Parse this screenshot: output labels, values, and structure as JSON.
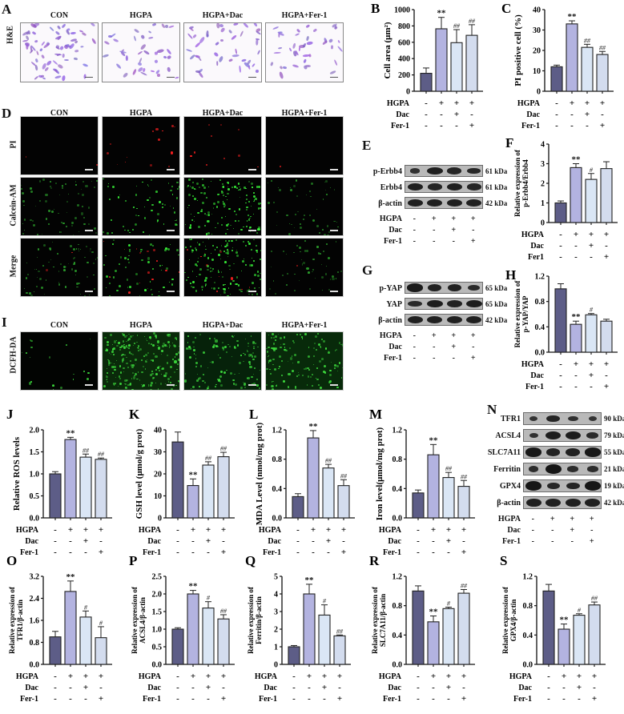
{
  "figure": {
    "conditions": {
      "row_labels": [
        "HGPA",
        "Dac",
        "Fer-1"
      ],
      "row_labels_F": [
        "HGPA",
        "Dac",
        "Fer1"
      ],
      "signs": [
        [
          "-",
          "+",
          "+",
          "+"
        ],
        [
          "-",
          "-",
          "+",
          "-"
        ],
        [
          "-",
          "-",
          "-",
          "+"
        ]
      ]
    },
    "group_names": [
      "CON",
      "HGPA",
      "HGPA+Dac",
      "HGPA+Fer-1"
    ],
    "bar_colors": [
      "#5d5d87",
      "#b3b3e0",
      "#dae6f5",
      "#d3dcee"
    ],
    "panels": {
      "A": {
        "label": "A",
        "row_label": "H&E"
      },
      "D": {
        "label": "D",
        "row_labels": [
          "PI",
          "Calcein-AM",
          "Merge"
        ]
      },
      "I": {
        "label": "I",
        "row_label": "DCFH-DA"
      },
      "E": {
        "label": "E",
        "bands": [
          {
            "name": "p-Erbb4",
            "kda": "61 kDa"
          },
          {
            "name": "Erbb4",
            "kda": "61 kDa"
          },
          {
            "name": "β-actin",
            "kda": "42 kDa"
          }
        ]
      },
      "G": {
        "label": "G",
        "bands": [
          {
            "name": "p-YAP",
            "kda": "65 kDa"
          },
          {
            "name": "YAP",
            "kda": "65 kDa"
          },
          {
            "name": "β-actin",
            "kda": "42 kDa"
          }
        ]
      },
      "N": {
        "label": "N",
        "bands": [
          {
            "name": "TFR1",
            "kda": "90 kDa"
          },
          {
            "name": "ACSL4",
            "kda": "79 kDa"
          },
          {
            "name": "SLC7A11",
            "kda": "55 kDa"
          },
          {
            "name": "Ferritin",
            "kda": "21 kDa"
          },
          {
            "name": "GPX4",
            "kda": "19 kDa"
          },
          {
            "name": "β-actin",
            "kda": "42 kDa"
          }
        ]
      }
    }
  },
  "chart_data": [
    {
      "panel": "B",
      "type": "bar",
      "ylabel": "Cell area (μm²)",
      "ylim": [
        0,
        1000
      ],
      "yticks": [
        "0",
        "200",
        "400",
        "600",
        "800",
        "1000"
      ],
      "categories": [
        "CON",
        "HGPA",
        "HGPA+Dac",
        "HGPA+Fer-1"
      ],
      "values": [
        220,
        765,
        595,
        685
      ],
      "errors": [
        65,
        140,
        160,
        130
      ],
      "annotations": [
        "",
        "**",
        "##",
        "##"
      ]
    },
    {
      "panel": "C",
      "type": "bar",
      "ylabel": "PI positive cell (%)",
      "ylim": [
        0,
        40
      ],
      "yticks": [
        "0",
        "10",
        "20",
        "30",
        "40"
      ],
      "categories": [
        "CON",
        "HGPA",
        "HGPA+Dac",
        "HGPA+Fer-1"
      ],
      "values": [
        12,
        33,
        21.5,
        18
      ],
      "errors": [
        0.8,
        1.5,
        1.5,
        1.5
      ],
      "annotations": [
        "",
        "**",
        "##",
        "##"
      ]
    },
    {
      "panel": "F",
      "type": "bar",
      "ylabel": "Relative expression of p-Erbb4/Erbb4",
      "ylim": [
        0,
        4
      ],
      "yticks": [
        "0",
        "1",
        "2",
        "3",
        "4"
      ],
      "categories": [
        "CON",
        "HGPA",
        "HGPA+Dac",
        "HGPA+Fer1"
      ],
      "values": [
        1.0,
        2.8,
        2.2,
        2.75
      ],
      "errors": [
        0.1,
        0.2,
        0.3,
        0.35
      ],
      "annotations": [
        "",
        "**",
        "#",
        ""
      ]
    },
    {
      "panel": "H",
      "type": "bar",
      "ylabel": "Relative expression of p-YAP/YAP",
      "ylim": [
        0,
        1.2
      ],
      "yticks": [
        "0.0",
        "0.4",
        "0.8",
        "1.2"
      ],
      "categories": [
        "CON",
        "HGPA",
        "HGPA+Dac",
        "HGPA+Fer-1"
      ],
      "values": [
        1.0,
        0.44,
        0.59,
        0.49
      ],
      "errors": [
        0.08,
        0.05,
        0.02,
        0.03
      ],
      "annotations": [
        "",
        "**",
        "#",
        ""
      ]
    },
    {
      "panel": "J",
      "type": "bar",
      "ylabel": "Relative ROS levels",
      "ylim": [
        0,
        2.0
      ],
      "yticks": [
        "0.0",
        "0.5",
        "1.0",
        "1.5",
        "2.0"
      ],
      "categories": [
        "CON",
        "HGPA",
        "HGPA+Dac",
        "HGPA+Fer-1"
      ],
      "values": [
        1.0,
        1.78,
        1.38,
        1.33
      ],
      "errors": [
        0.05,
        0.05,
        0.07,
        0.03
      ],
      "annotations": [
        "",
        "**",
        "##",
        "##"
      ]
    },
    {
      "panel": "K",
      "type": "bar",
      "ylabel": "GSH level (μmol/g prot)",
      "ylim": [
        0,
        40
      ],
      "yticks": [
        "0",
        "10",
        "20",
        "30",
        "40"
      ],
      "categories": [
        "CON",
        "HGPA",
        "HGPA+Dac",
        "HGPA+Fer-1"
      ],
      "values": [
        34.5,
        14.7,
        24,
        27.8
      ],
      "errors": [
        4.5,
        3,
        1.5,
        2
      ],
      "annotations": [
        "",
        "**",
        "##",
        "##"
      ]
    },
    {
      "panel": "L",
      "type": "bar",
      "ylabel": "MDA Level (nmol/mg prot)",
      "ylim": [
        0,
        1.2
      ],
      "yticks": [
        "0.0",
        "0.4",
        "0.8",
        "1.2"
      ],
      "categories": [
        "CON",
        "HGPA",
        "HGPA+Dac",
        "HGPA+Fer-1"
      ],
      "values": [
        0.29,
        1.09,
        0.68,
        0.44
      ],
      "errors": [
        0.04,
        0.1,
        0.05,
        0.08
      ],
      "annotations": [
        "",
        "**",
        "##",
        "##"
      ]
    },
    {
      "panel": "M",
      "type": "bar",
      "ylabel": "Iron level(μmol/mg prot)",
      "ylim": [
        0,
        1.2
      ],
      "yticks": [
        "0.0",
        "0.4",
        "0.8",
        "1.2"
      ],
      "categories": [
        "CON",
        "HGPA",
        "HGPA+Dac",
        "HGPA+Fer-1"
      ],
      "values": [
        0.34,
        0.86,
        0.55,
        0.43
      ],
      "errors": [
        0.04,
        0.14,
        0.07,
        0.08
      ],
      "annotations": [
        "",
        "**",
        "##",
        "##"
      ]
    },
    {
      "panel": "O",
      "type": "bar",
      "ylabel": "Relative expression of TFR1/β-actin",
      "ylim": [
        0,
        3.2
      ],
      "yticks": [
        "0.0",
        "0.8",
        "1.6",
        "2.4",
        "3.2"
      ],
      "categories": [
        "CON",
        "HGPA",
        "HGPA+Dac",
        "HGPA+Fer-1"
      ],
      "values": [
        1.0,
        2.65,
        1.72,
        0.97
      ],
      "errors": [
        0.2,
        0.38,
        0.22,
        0.4
      ],
      "annotations": [
        "",
        "**",
        "#",
        "#"
      ]
    },
    {
      "panel": "P",
      "type": "bar",
      "ylabel": "Relative expression of ACSL4/β-actin",
      "ylim": [
        0,
        2.5
      ],
      "yticks": [
        "0.0",
        "0.5",
        "1.0",
        "1.5",
        "2.0",
        "2.5"
      ],
      "categories": [
        "CON",
        "HGPA",
        "HGPA+Dac",
        "HGPA+Fer-1"
      ],
      "values": [
        1.0,
        2.0,
        1.6,
        1.29
      ],
      "errors": [
        0.04,
        0.1,
        0.18,
        0.12
      ],
      "annotations": [
        "",
        "**",
        "#",
        "##"
      ]
    },
    {
      "panel": "Q",
      "type": "bar",
      "ylabel": "Relative expression of Ferritin/β-actin",
      "ylim": [
        0,
        5
      ],
      "yticks": [
        "0",
        "1",
        "2",
        "3",
        "4",
        "5"
      ],
      "categories": [
        "CON",
        "HGPA",
        "HGPA+Dac",
        "HGPA+Fer-1"
      ],
      "values": [
        1.0,
        4.0,
        2.8,
        1.62
      ],
      "errors": [
        0.07,
        0.55,
        0.58,
        0.05
      ],
      "annotations": [
        "",
        "**",
        "#",
        "##"
      ]
    },
    {
      "panel": "R",
      "type": "bar",
      "ylabel": "Relative expression of SLC7A11/β-actin",
      "ylim": [
        0,
        1.2
      ],
      "yticks": [
        "0.0",
        "0.4",
        "0.8",
        "1.2"
      ],
      "categories": [
        "CON",
        "HGPA",
        "HGPA+Dac",
        "HGPA+Fer-1"
      ],
      "values": [
        1.0,
        0.58,
        0.76,
        0.97
      ],
      "errors": [
        0.07,
        0.08,
        0.02,
        0.05
      ],
      "annotations": [
        "",
        "**",
        "#",
        "##"
      ]
    },
    {
      "panel": "S",
      "type": "bar",
      "ylabel": "Relative expression of GPX4/β-actin",
      "ylim": [
        0,
        1.2
      ],
      "yticks": [
        "0.0",
        "0.4",
        "0.8",
        "1.2"
      ],
      "categories": [
        "CON",
        "HGPA",
        "HGPA+Dac",
        "HGPA+Fer-1"
      ],
      "values": [
        1.0,
        0.48,
        0.67,
        0.81
      ],
      "errors": [
        0.09,
        0.07,
        0.02,
        0.04
      ],
      "annotations": [
        "",
        "**",
        "#",
        "##"
      ]
    }
  ]
}
